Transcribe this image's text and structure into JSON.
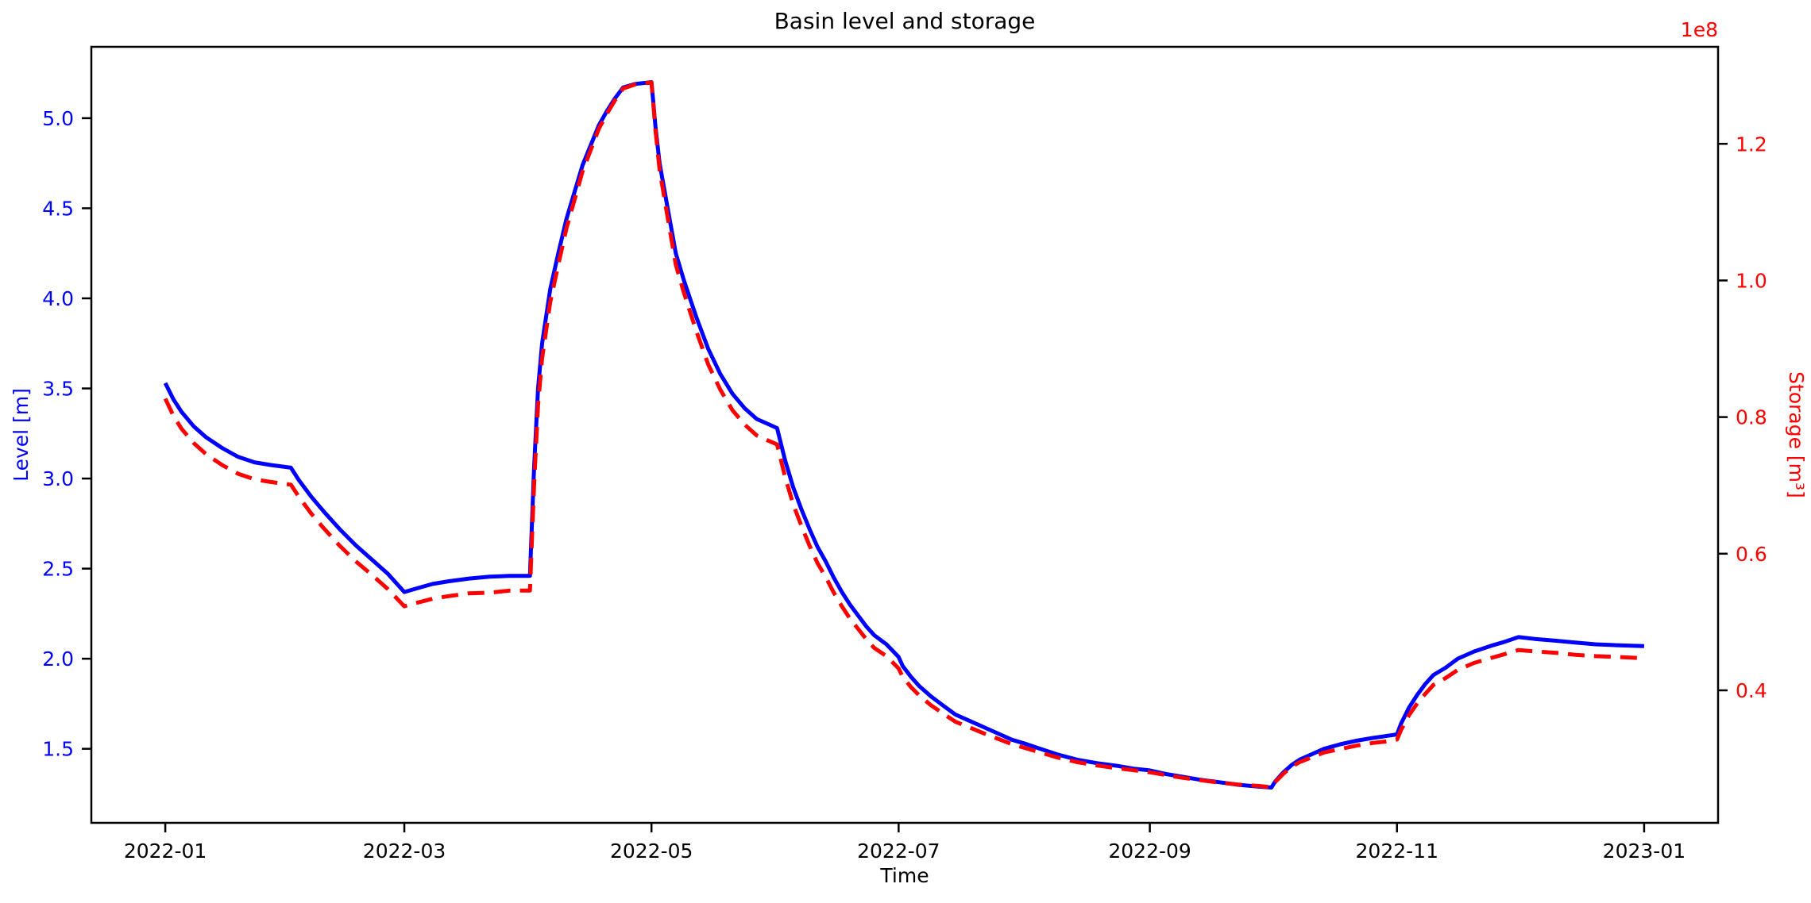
{
  "chart_data": {
    "type": "line",
    "title": "Basin level and storage",
    "xlabel": "Time",
    "ylabel_left": "Level [m]",
    "ylabel_right": "Storage [m³]",
    "right_axis_offset_text": "1e8",
    "background": "#ffffff",
    "grid": false,
    "legend": false,
    "colors": {
      "level": "#0000ff",
      "storage": "#ff0000",
      "axis": "#000000",
      "xtick_label": "#000000"
    },
    "x_unit": "days since 2022-01-01",
    "x_lim_days": [
      -18.25,
      383.25
    ],
    "left_ylim": [
      1.089,
      5.396
    ],
    "right_ylim_1e8": [
      0.206,
      1.342
    ],
    "x_ticks": [
      {
        "day": 0,
        "label": "2022-01"
      },
      {
        "day": 59,
        "label": "2022-03"
      },
      {
        "day": 120,
        "label": "2022-05"
      },
      {
        "day": 181,
        "label": "2022-07"
      },
      {
        "day": 243,
        "label": "2022-09"
      },
      {
        "day": 304,
        "label": "2022-11"
      },
      {
        "day": 365,
        "label": "2023-01"
      }
    ],
    "left_yticks": [
      1.5,
      2.0,
      2.5,
      3.0,
      3.5,
      4.0,
      4.5,
      5.0
    ],
    "right_yticks_1e8": [
      0.4,
      0.6,
      0.8,
      1.0,
      1.2
    ],
    "x_days": [
      0,
      2,
      4,
      7,
      10,
      14,
      18,
      22,
      26,
      31,
      33,
      36,
      39,
      43,
      47,
      51,
      55,
      59,
      62,
      66,
      70,
      75,
      80,
      85,
      90,
      91,
      92,
      93,
      95,
      97,
      99,
      101,
      103,
      105,
      107,
      109,
      111,
      113,
      116,
      120,
      121,
      122,
      124,
      126,
      128,
      131,
      134,
      137,
      140,
      143,
      146,
      149,
      151,
      153,
      155,
      157,
      159,
      161,
      163,
      165,
      167,
      169,
      171,
      173,
      175,
      178,
      181,
      182,
      184,
      186,
      189,
      192,
      195,
      198,
      202,
      206,
      209,
      212,
      216,
      220,
      225,
      230,
      235,
      239,
      243,
      247,
      251,
      255,
      260,
      265,
      270,
      273,
      274,
      276,
      278,
      280,
      283,
      286,
      290,
      294,
      298,
      301,
      304,
      305,
      307,
      309,
      311,
      313,
      316,
      319,
      323,
      327,
      330,
      334,
      338,
      343,
      348,
      353,
      358,
      365
    ],
    "series": [
      {
        "name": "Level",
        "axis": "left",
        "unit": "m",
        "color": "#0000ff",
        "line_style": "solid",
        "values": [
          3.53,
          3.44,
          3.37,
          3.29,
          3.23,
          3.17,
          3.12,
          3.09,
          3.075,
          3.06,
          2.99,
          2.9,
          2.82,
          2.72,
          2.63,
          2.55,
          2.47,
          2.37,
          2.39,
          2.415,
          2.43,
          2.445,
          2.455,
          2.46,
          2.46,
          3.05,
          3.5,
          3.75,
          4.05,
          4.25,
          4.44,
          4.59,
          4.74,
          4.85,
          4.96,
          5.04,
          5.11,
          5.17,
          5.19,
          5.2,
          4.95,
          4.75,
          4.5,
          4.25,
          4.1,
          3.9,
          3.72,
          3.58,
          3.47,
          3.39,
          3.33,
          3.3,
          3.28,
          3.1,
          2.95,
          2.83,
          2.72,
          2.62,
          2.54,
          2.45,
          2.37,
          2.3,
          2.24,
          2.18,
          2.13,
          2.08,
          2.01,
          1.96,
          1.9,
          1.85,
          1.79,
          1.74,
          1.69,
          1.66,
          1.62,
          1.58,
          1.55,
          1.53,
          1.5,
          1.47,
          1.44,
          1.42,
          1.405,
          1.39,
          1.38,
          1.36,
          1.345,
          1.33,
          1.315,
          1.3,
          1.29,
          1.285,
          1.32,
          1.37,
          1.41,
          1.44,
          1.47,
          1.5,
          1.525,
          1.545,
          1.56,
          1.57,
          1.58,
          1.64,
          1.73,
          1.8,
          1.86,
          1.91,
          1.95,
          2.0,
          2.04,
          2.07,
          2.09,
          2.12,
          2.11,
          2.1,
          2.09,
          2.08,
          2.075,
          2.07
        ]
      },
      {
        "name": "Storage",
        "axis": "right",
        "unit": "1e8 m³",
        "color": "#ff0000",
        "line_style": "dashed",
        "values": [
          0.827,
          0.802,
          0.783,
          0.762,
          0.746,
          0.73,
          0.717,
          0.709,
          0.705,
          0.701,
          0.683,
          0.659,
          0.638,
          0.612,
          0.589,
          0.569,
          0.548,
          0.523,
          0.528,
          0.534,
          0.538,
          0.542,
          0.543,
          0.546,
          0.546,
          0.698,
          0.818,
          0.886,
          0.968,
          1.023,
          1.076,
          1.118,
          1.16,
          1.191,
          1.222,
          1.244,
          1.264,
          1.281,
          1.287,
          1.29,
          1.219,
          1.162,
          1.092,
          1.023,
          0.982,
          0.927,
          0.877,
          0.84,
          0.81,
          0.789,
          0.773,
          0.765,
          0.76,
          0.712,
          0.672,
          0.641,
          0.612,
          0.586,
          0.566,
          0.543,
          0.523,
          0.505,
          0.49,
          0.475,
          0.462,
          0.45,
          0.432,
          0.42,
          0.405,
          0.393,
          0.378,
          0.366,
          0.354,
          0.347,
          0.337,
          0.328,
          0.321,
          0.316,
          0.309,
          0.302,
          0.295,
          0.29,
          0.286,
          0.283,
          0.28,
          0.276,
          0.272,
          0.269,
          0.265,
          0.262,
          0.26,
          0.258,
          0.266,
          0.278,
          0.288,
          0.295,
          0.302,
          0.309,
          0.314,
          0.319,
          0.323,
          0.325,
          0.328,
          0.342,
          0.364,
          0.381,
          0.395,
          0.408,
          0.418,
          0.43,
          0.44,
          0.447,
          0.452,
          0.459,
          0.457,
          0.455,
          0.452,
          0.45,
          0.449,
          0.447
        ]
      }
    ]
  }
}
